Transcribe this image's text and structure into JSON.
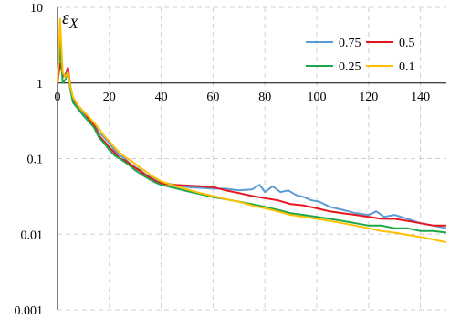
{
  "chart_data": {
    "type": "line",
    "ylabel": "ε",
    "ylabel_sub": "X",
    "yscale": "log",
    "ylim": [
      0.001,
      10
    ],
    "xlim": [
      0,
      150
    ],
    "x_ticks": [
      "0",
      "20",
      "40",
      "60",
      "80",
      "100",
      "120",
      "140"
    ],
    "y_ticks": [
      "0.001",
      "0.01",
      "0.1",
      "1",
      "10"
    ],
    "grid": true,
    "legend_position": "top-right",
    "series": [
      {
        "name": "0.75",
        "color": "#5b9bd5",
        "points": [
          [
            0,
            1.0
          ],
          [
            1,
            2.8
          ],
          [
            2,
            1.2
          ],
          [
            3,
            1.3
          ],
          [
            4,
            1.5
          ],
          [
            5,
            0.85
          ],
          [
            6,
            0.6
          ],
          [
            8,
            0.48
          ],
          [
            10,
            0.4
          ],
          [
            12,
            0.33
          ],
          [
            14,
            0.3
          ],
          [
            16,
            0.22
          ],
          [
            18,
            0.19
          ],
          [
            20,
            0.16
          ],
          [
            22,
            0.13
          ],
          [
            24,
            0.11
          ],
          [
            26,
            0.1
          ],
          [
            28,
            0.085
          ],
          [
            30,
            0.077
          ],
          [
            32,
            0.07
          ],
          [
            34,
            0.062
          ],
          [
            36,
            0.056
          ],
          [
            38,
            0.052
          ],
          [
            40,
            0.049
          ],
          [
            45,
            0.045
          ],
          [
            50,
            0.042
          ],
          [
            55,
            0.041
          ],
          [
            60,
            0.04
          ],
          [
            65,
            0.04
          ],
          [
            70,
            0.038
          ],
          [
            75,
            0.039
          ],
          [
            78,
            0.045
          ],
          [
            80,
            0.036
          ],
          [
            83,
            0.043
          ],
          [
            86,
            0.036
          ],
          [
            89,
            0.038
          ],
          [
            92,
            0.033
          ],
          [
            95,
            0.031
          ],
          [
            98,
            0.028
          ],
          [
            101,
            0.027
          ],
          [
            105,
            0.023
          ],
          [
            110,
            0.021
          ],
          [
            115,
            0.019
          ],
          [
            120,
            0.018
          ],
          [
            123,
            0.02
          ],
          [
            126,
            0.017
          ],
          [
            130,
            0.018
          ],
          [
            135,
            0.016
          ],
          [
            140,
            0.014
          ],
          [
            145,
            0.013
          ],
          [
            150,
            0.012
          ]
        ]
      },
      {
        "name": "0.5",
        "color": "#e8141c",
        "points": [
          [
            0,
            1.0
          ],
          [
            1,
            1.8
          ],
          [
            2,
            1.3
          ],
          [
            3,
            1.2
          ],
          [
            4,
            1.6
          ],
          [
            5,
            0.9
          ],
          [
            6,
            0.62
          ],
          [
            8,
            0.5
          ],
          [
            10,
            0.42
          ],
          [
            12,
            0.34
          ],
          [
            14,
            0.28
          ],
          [
            16,
            0.2
          ],
          [
            18,
            0.17
          ],
          [
            20,
            0.14
          ],
          [
            22,
            0.12
          ],
          [
            24,
            0.1
          ],
          [
            26,
            0.095
          ],
          [
            28,
            0.085
          ],
          [
            30,
            0.075
          ],
          [
            32,
            0.068
          ],
          [
            34,
            0.06
          ],
          [
            36,
            0.055
          ],
          [
            38,
            0.05
          ],
          [
            40,
            0.047
          ],
          [
            45,
            0.045
          ],
          [
            50,
            0.044
          ],
          [
            55,
            0.043
          ],
          [
            60,
            0.042
          ],
          [
            65,
            0.038
          ],
          [
            70,
            0.035
          ],
          [
            75,
            0.032
          ],
          [
            80,
            0.03
          ],
          [
            85,
            0.028
          ],
          [
            90,
            0.025
          ],
          [
            95,
            0.024
          ],
          [
            100,
            0.022
          ],
          [
            105,
            0.02
          ],
          [
            110,
            0.019
          ],
          [
            115,
            0.018
          ],
          [
            120,
            0.017
          ],
          [
            125,
            0.016
          ],
          [
            130,
            0.016
          ],
          [
            135,
            0.015
          ],
          [
            140,
            0.014
          ],
          [
            145,
            0.013
          ],
          [
            150,
            0.013
          ]
        ]
      },
      {
        "name": "0.25",
        "color": "#1ca84a",
        "points": [
          [
            0,
            1.0
          ],
          [
            1,
            3.5
          ],
          [
            2,
            1.0
          ],
          [
            3,
            1.1
          ],
          [
            4,
            1.4
          ],
          [
            5,
            0.8
          ],
          [
            6,
            0.55
          ],
          [
            8,
            0.45
          ],
          [
            10,
            0.37
          ],
          [
            12,
            0.31
          ],
          [
            14,
            0.26
          ],
          [
            16,
            0.19
          ],
          [
            18,
            0.16
          ],
          [
            20,
            0.13
          ],
          [
            22,
            0.11
          ],
          [
            24,
            0.1
          ],
          [
            26,
            0.09
          ],
          [
            28,
            0.08
          ],
          [
            30,
            0.07
          ],
          [
            32,
            0.063
          ],
          [
            34,
            0.057
          ],
          [
            36,
            0.052
          ],
          [
            38,
            0.048
          ],
          [
            40,
            0.045
          ],
          [
            45,
            0.041
          ],
          [
            50,
            0.037
          ],
          [
            55,
            0.034
          ],
          [
            60,
            0.031
          ],
          [
            65,
            0.029
          ],
          [
            70,
            0.027
          ],
          [
            75,
            0.025
          ],
          [
            80,
            0.023
          ],
          [
            85,
            0.021
          ],
          [
            90,
            0.019
          ],
          [
            95,
            0.018
          ],
          [
            100,
            0.017
          ],
          [
            105,
            0.016
          ],
          [
            110,
            0.015
          ],
          [
            115,
            0.014
          ],
          [
            120,
            0.013
          ],
          [
            125,
            0.013
          ],
          [
            130,
            0.012
          ],
          [
            135,
            0.012
          ],
          [
            140,
            0.011
          ],
          [
            145,
            0.011
          ],
          [
            150,
            0.0105
          ]
        ]
      },
      {
        "name": "0.1",
        "color": "#ffc000",
        "points": [
          [
            0,
            1.0
          ],
          [
            1,
            7.0
          ],
          [
            2,
            1.4
          ],
          [
            3,
            1.2
          ],
          [
            4,
            1.4
          ],
          [
            5,
            0.9
          ],
          [
            6,
            0.65
          ],
          [
            8,
            0.5
          ],
          [
            10,
            0.42
          ],
          [
            12,
            0.36
          ],
          [
            14,
            0.3
          ],
          [
            16,
            0.25
          ],
          [
            18,
            0.2
          ],
          [
            20,
            0.17
          ],
          [
            22,
            0.14
          ],
          [
            24,
            0.12
          ],
          [
            26,
            0.105
          ],
          [
            28,
            0.095
          ],
          [
            30,
            0.085
          ],
          [
            32,
            0.075
          ],
          [
            34,
            0.068
          ],
          [
            36,
            0.06
          ],
          [
            38,
            0.055
          ],
          [
            40,
            0.05
          ],
          [
            45,
            0.044
          ],
          [
            50,
            0.039
          ],
          [
            55,
            0.035
          ],
          [
            60,
            0.032
          ],
          [
            65,
            0.029
          ],
          [
            70,
            0.027
          ],
          [
            75,
            0.024
          ],
          [
            80,
            0.022
          ],
          [
            85,
            0.02
          ],
          [
            90,
            0.018
          ],
          [
            95,
            0.017
          ],
          [
            100,
            0.016
          ],
          [
            105,
            0.015
          ],
          [
            110,
            0.014
          ],
          [
            115,
            0.013
          ],
          [
            120,
            0.012
          ],
          [
            125,
            0.011
          ],
          [
            130,
            0.0105
          ],
          [
            135,
            0.0098
          ],
          [
            140,
            0.0092
          ],
          [
            145,
            0.0085
          ],
          [
            150,
            0.0078
          ]
        ]
      }
    ]
  }
}
